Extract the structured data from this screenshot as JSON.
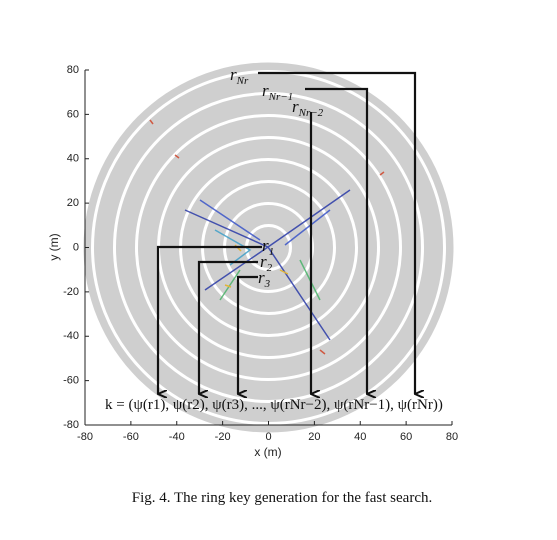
{
  "figure": {
    "xlabel": "x (m)",
    "ylabel": "y (m)",
    "xlim": [
      -80,
      80
    ],
    "ylim": [
      -80,
      80
    ],
    "xticks": [
      -80,
      -60,
      -40,
      -20,
      0,
      20,
      40,
      60,
      80
    ],
    "yticks": [
      -80,
      -60,
      -40,
      -20,
      0,
      20,
      40,
      60,
      80
    ],
    "ring_labels": [
      {
        "text": "r",
        "sub": "Nr"
      },
      {
        "text": "r",
        "sub": "Nr−1"
      },
      {
        "text": "r",
        "sub": "Nr−2"
      },
      {
        "text": "r",
        "sub": "1"
      },
      {
        "text": "r",
        "sub": "2"
      },
      {
        "text": "r",
        "sub": "3"
      }
    ],
    "formula": "k = (ψ(r1), ψ(r2), ψ(r3), ..., ψ(rNr−2), ψ(rNr−1), ψ(rNr))",
    "caption": "Fig. 4.   The ring key generation for the fast search."
  }
}
